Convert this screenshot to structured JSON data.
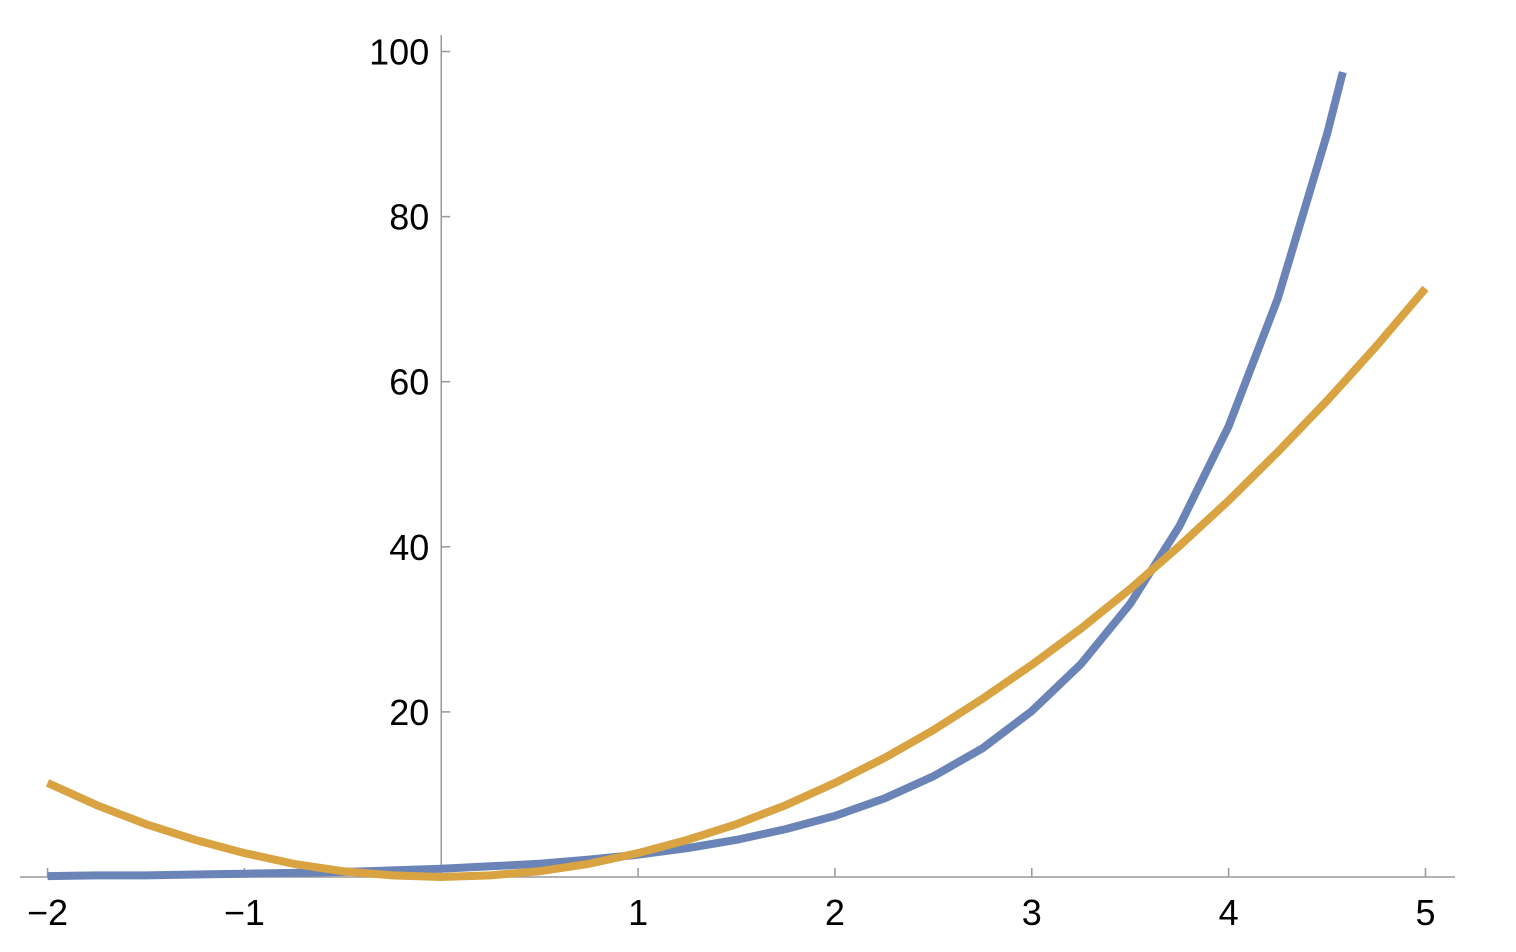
{
  "chart_data": {
    "type": "line",
    "x": [
      -2,
      -1.75,
      -1.5,
      -1.25,
      -1,
      -0.75,
      -0.5,
      -0.25,
      0,
      0.25,
      0.5,
      0.75,
      1,
      1.25,
      1.5,
      1.75,
      2,
      2.25,
      2.5,
      2.75,
      3,
      3.25,
      3.5,
      3.75,
      4,
      4.25,
      4.5,
      4.58,
      4.75,
      5
    ],
    "series": [
      {
        "color": "#6a84b8",
        "values": [
          0.1,
          0.2,
          0.2,
          0.3,
          0.4,
          0.5,
          0.6,
          0.8,
          1,
          1.3,
          1.6,
          2.1,
          2.7,
          3.5,
          4.5,
          5.8,
          7.4,
          9.5,
          12.2,
          15.6,
          20.1,
          25.8,
          33.1,
          42.5,
          54.6,
          70.1,
          90,
          97.5,
          null,
          null
        ]
      },
      {
        "color": "#d8a340",
        "values": [
          11.4,
          8.7,
          6.4,
          4.5,
          2.9,
          1.6,
          0.7,
          0.2,
          0,
          0.2,
          0.7,
          1.6,
          2.9,
          4.5,
          6.4,
          8.7,
          11.4,
          14.4,
          17.8,
          21.6,
          25.7,
          30.1,
          34.9,
          40.1,
          45.6,
          51.5,
          57.7,
          59.8,
          64.3,
          71.3
        ]
      }
    ],
    "xlim": [
      -2.14,
      5.15
    ],
    "ylim": [
      0,
      102
    ],
    "xticks": [
      {
        "value": -2,
        "label": "−2"
      },
      {
        "value": -1,
        "label": "−1"
      },
      1,
      2,
      3,
      4,
      5
    ],
    "yticks": [
      20,
      40,
      60,
      80,
      100
    ]
  }
}
